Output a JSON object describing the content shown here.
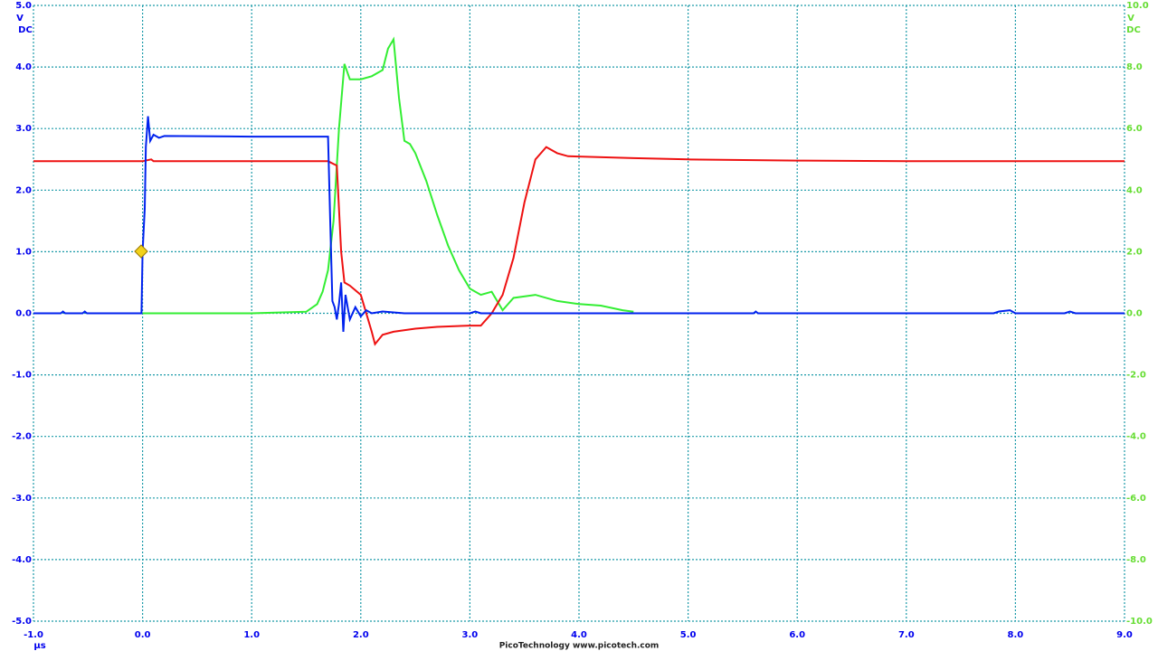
{
  "chart_data": {
    "type": "line",
    "y_unit": "V",
    "y_coupling": "DC",
    "y2_unit": "V",
    "y2_coupling": "DC",
    "x_unit": "μs",
    "footer": "PicoTechnology  www.picotech.com",
    "xlim": [
      -1,
      9
    ],
    "xticks": [
      {
        "value": -1,
        "label": "-1.0"
      },
      {
        "value": 0,
        "label": "0.0"
      },
      {
        "value": 1,
        "label": "1.0"
      },
      {
        "value": 2,
        "label": "2.0"
      },
      {
        "value": 3,
        "label": "3.0"
      },
      {
        "value": 4,
        "label": "4.0"
      },
      {
        "value": 5,
        "label": "5.0"
      },
      {
        "value": 6,
        "label": "6.0"
      },
      {
        "value": 7,
        "label": "7.0"
      },
      {
        "value": 8,
        "label": "8.0"
      },
      {
        "value": 9,
        "label": "9.0"
      }
    ],
    "ylim": [
      -5,
      5
    ],
    "yticks": [
      {
        "value": -5,
        "label": "-5.0"
      },
      {
        "value": -4,
        "label": "-4.0"
      },
      {
        "value": -3,
        "label": "-3.0"
      },
      {
        "value": -2,
        "label": "-2.0"
      },
      {
        "value": -1,
        "label": "-1.0"
      },
      {
        "value": 0,
        "label": "0.0"
      },
      {
        "value": 1,
        "label": "1.0"
      },
      {
        "value": 2,
        "label": "2.0"
      },
      {
        "value": 3,
        "label": "3.0"
      },
      {
        "value": 4,
        "label": "4.0"
      },
      {
        "value": 5,
        "label": "5.0"
      }
    ],
    "y2lim": [
      -10,
      10
    ],
    "y2ticks": [
      {
        "value": -10,
        "label": "-10.0"
      },
      {
        "value": -8,
        "label": "-8.0"
      },
      {
        "value": -6,
        "label": "-6.0"
      },
      {
        "value": -4,
        "label": "-4.0"
      },
      {
        "value": -2,
        "label": "-2.0"
      },
      {
        "value": 0,
        "label": "0.0"
      },
      {
        "value": 2,
        "label": "2.0"
      },
      {
        "value": 4,
        "label": "4.0"
      },
      {
        "value": 6,
        "label": "6.0"
      },
      {
        "value": 8,
        "label": "8.0"
      },
      {
        "value": 10,
        "label": "10.0"
      }
    ],
    "y_color": "#0000ee",
    "y2_color": "#66dd33",
    "grid": true,
    "series": [
      {
        "color": "#33ee33",
        "axis": "y2",
        "x": [
          0,
          1,
          1.5,
          1.6,
          1.65,
          1.7,
          1.75,
          1.8,
          1.85,
          1.9,
          2.0,
          2.1,
          2.2,
          2.25,
          2.3,
          2.35,
          2.4,
          2.45,
          2.5,
          2.6,
          2.7,
          2.8,
          2.9,
          3.0,
          3.1,
          3.2,
          3.3,
          3.4,
          3.6,
          3.8,
          4.0,
          4.2,
          4.4,
          4.5
        ],
        "values": [
          0,
          0,
          0.05,
          0.3,
          0.7,
          1.4,
          3.0,
          6.0,
          8.1,
          7.6,
          7.6,
          7.7,
          7.9,
          8.6,
          8.9,
          7.0,
          5.6,
          5.5,
          5.2,
          4.3,
          3.2,
          2.2,
          1.4,
          0.8,
          0.6,
          0.7,
          0.1,
          0.5,
          0.6,
          0.4,
          0.3,
          0.25,
          0.1,
          0.05
        ]
      },
      {
        "color": "#ee1111",
        "x": [
          -1,
          0,
          0.08,
          0.1,
          1.7,
          1.78,
          1.82,
          1.85,
          1.9,
          2.0,
          2.1,
          2.13,
          2.2,
          2.3,
          2.5,
          2.7,
          3.0,
          3.1,
          3.2,
          3.3,
          3.4,
          3.5,
          3.6,
          3.7,
          3.8,
          3.9,
          4.5,
          5.0,
          6.0,
          7.0,
          8.0,
          9.0
        ],
        "values": [
          2.47,
          2.47,
          2.5,
          2.47,
          2.47,
          2.4,
          1.0,
          0.5,
          0.45,
          0.3,
          -0.3,
          -0.5,
          -0.35,
          -0.3,
          -0.25,
          -0.22,
          -0.2,
          -0.2,
          0.0,
          0.3,
          0.9,
          1.8,
          2.5,
          2.7,
          2.6,
          2.55,
          2.52,
          2.5,
          2.48,
          2.47,
          2.47,
          2.47
        ]
      },
      {
        "color": "#0022ee",
        "x": [
          -1,
          -0.75,
          -0.73,
          -0.71,
          -0.55,
          -0.53,
          -0.51,
          -0.01,
          0,
          0.02,
          0.03,
          0.05,
          0.07,
          0.1,
          0.15,
          0.2,
          1.0,
          1.7,
          1.72,
          1.74,
          1.76,
          1.78,
          1.8,
          1.82,
          1.84,
          1.86,
          1.88,
          1.9,
          1.95,
          2.0,
          2.05,
          2.1,
          2.2,
          2.4,
          2.7,
          3.0,
          3.05,
          3.1,
          5.6,
          5.62,
          5.64,
          7.8,
          7.85,
          7.95,
          8.0,
          8.45,
          8.5,
          8.55,
          9.0
        ],
        "values": [
          0,
          0,
          0.03,
          0,
          0,
          0.03,
          0,
          0,
          1.0,
          1.7,
          2.7,
          3.2,
          2.8,
          2.9,
          2.85,
          2.88,
          2.87,
          2.87,
          1.5,
          0.2,
          0.1,
          -0.1,
          0.15,
          0.5,
          -0.3,
          0.3,
          0.1,
          -0.1,
          0.1,
          -0.05,
          0.05,
          0,
          0.03,
          0,
          0,
          0,
          0.03,
          0,
          0,
          0.03,
          0,
          0,
          0.03,
          0.05,
          0,
          0,
          0.03,
          0,
          0
        ]
      }
    ]
  }
}
